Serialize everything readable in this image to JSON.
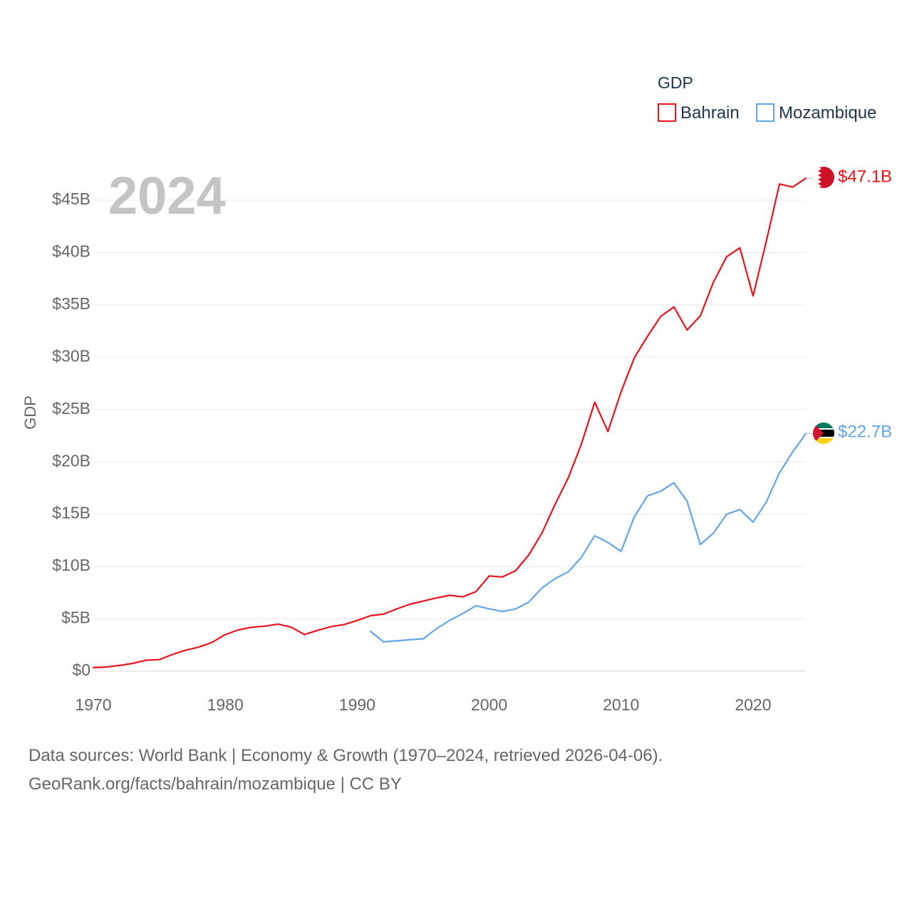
{
  "chart_data": {
    "type": "line",
    "title": "",
    "year_label": "2024",
    "ylabel": "GDP",
    "xlabel": "",
    "xlim": [
      1970,
      2024
    ],
    "ylim": [
      0,
      45
    ],
    "x_ticks": [
      1970,
      1980,
      1990,
      2000,
      2010,
      2020
    ],
    "y_ticks": [
      {
        "value": 0,
        "label": "$0"
      },
      {
        "value": 5,
        "label": "$5B"
      },
      {
        "value": 10,
        "label": "$10B"
      },
      {
        "value": 15,
        "label": "$15B"
      },
      {
        "value": 20,
        "label": "$20B"
      },
      {
        "value": 25,
        "label": "$25B"
      },
      {
        "value": 30,
        "label": "$30B"
      },
      {
        "value": 35,
        "label": "$35B"
      },
      {
        "value": 40,
        "label": "$40B"
      },
      {
        "value": 45,
        "label": "$45B"
      }
    ],
    "units": "billion USD",
    "legend": {
      "title": "GDP",
      "position": "top-right"
    },
    "series": [
      {
        "name": "Bahrain",
        "color": "#e8141c",
        "end_label": "$47.1B",
        "flag": "bahrain-flag",
        "x": [
          1970,
          1971,
          1972,
          1973,
          1974,
          1975,
          1976,
          1977,
          1978,
          1979,
          1980,
          1981,
          1982,
          1983,
          1984,
          1985,
          1986,
          1987,
          1988,
          1989,
          1990,
          1991,
          1992,
          1993,
          1994,
          1995,
          1996,
          1997,
          1998,
          1999,
          2000,
          2001,
          2002,
          2003,
          2004,
          2005,
          2006,
          2007,
          2008,
          2009,
          2010,
          2011,
          2012,
          2013,
          2014,
          2015,
          2016,
          2017,
          2018,
          2019,
          2020,
          2021,
          2022,
          2023,
          2024
        ],
        "values": [
          0.35,
          0.4,
          0.55,
          0.75,
          1.05,
          1.1,
          1.6,
          2.0,
          2.3,
          2.75,
          3.5,
          3.95,
          4.2,
          4.3,
          4.5,
          4.2,
          3.5,
          3.9,
          4.25,
          4.45,
          4.85,
          5.3,
          5.45,
          5.95,
          6.4,
          6.7,
          7.0,
          7.25,
          7.1,
          7.6,
          9.1,
          9.0,
          9.6,
          11.1,
          13.2,
          15.95,
          18.5,
          21.75,
          25.7,
          22.9,
          26.7,
          29.95,
          32.0,
          33.9,
          34.8,
          32.6,
          33.95,
          37.2,
          39.6,
          40.45,
          35.85,
          41.05,
          46.55,
          46.25,
          47.1
        ]
      },
      {
        "name": "Mozambique",
        "color": "#64a5e8",
        "end_label": "$22.7B",
        "flag": "mozambique-flag",
        "x": [
          1991,
          1992,
          1993,
          1994,
          1995,
          1996,
          1997,
          1998,
          1999,
          2000,
          2001,
          2002,
          2003,
          2004,
          2005,
          2006,
          2007,
          2008,
          2009,
          2010,
          2011,
          2012,
          2013,
          2014,
          2015,
          2016,
          2017,
          2018,
          2019,
          2020,
          2021,
          2022,
          2023,
          2024
        ],
        "values": [
          3.8,
          2.8,
          2.9,
          3.0,
          3.1,
          4.05,
          4.85,
          5.5,
          6.25,
          5.95,
          5.7,
          5.95,
          6.6,
          7.95,
          8.85,
          9.5,
          10.9,
          12.95,
          12.3,
          11.45,
          14.75,
          16.75,
          17.2,
          18.0,
          16.25,
          12.1,
          13.2,
          15.0,
          15.45,
          14.25,
          16.15,
          18.95,
          20.95,
          22.7
        ]
      }
    ]
  },
  "footer": {
    "line1": "Data sources: World Bank | Economy & Growth (1970–2024, retrieved 2026-04-06).",
    "line2": "GeoRank.org/facts/bahrain/mozambique | CC BY"
  }
}
